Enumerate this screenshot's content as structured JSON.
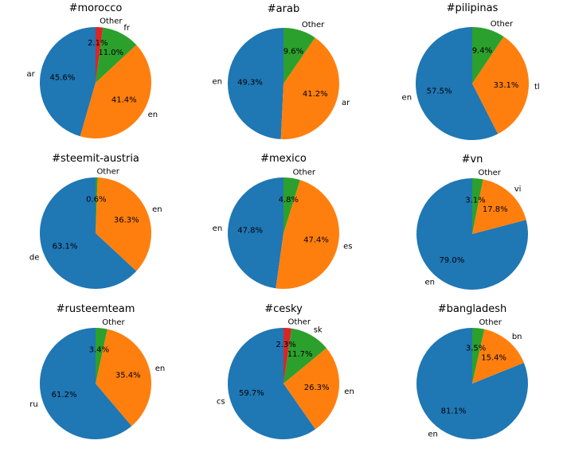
{
  "colors": [
    "#1f77b4",
    "#ff7f0e",
    "#2ca02c",
    "#d62728"
  ],
  "chart_data": [
    {
      "type": "pie",
      "title": "#morocco",
      "labels": [
        "ar",
        "en",
        "fr",
        "Other"
      ],
      "values": [
        45.6,
        41.4,
        11.0,
        2.1
      ]
    },
    {
      "type": "pie",
      "title": "#arab",
      "labels": [
        "en",
        "ar",
        "Other"
      ],
      "values": [
        49.3,
        41.2,
        9.6
      ]
    },
    {
      "type": "pie",
      "title": "#pilipinas",
      "labels": [
        "en",
        "tl",
        "Other"
      ],
      "values": [
        57.5,
        33.1,
        9.4
      ]
    },
    {
      "type": "pie",
      "title": "#steemit-austria",
      "labels": [
        "de",
        "en",
        "Other"
      ],
      "values": [
        63.1,
        36.3,
        0.6
      ]
    },
    {
      "type": "pie",
      "title": "#mexico",
      "labels": [
        "en",
        "es",
        "Other"
      ],
      "values": [
        47.8,
        47.4,
        4.8
      ]
    },
    {
      "type": "pie",
      "title": "#vn",
      "labels": [
        "en",
        "vi",
        "Other"
      ],
      "values": [
        79.0,
        17.8,
        3.1
      ]
    },
    {
      "type": "pie",
      "title": "#rusteemteam",
      "labels": [
        "ru",
        "en",
        "Other"
      ],
      "values": [
        61.2,
        35.4,
        3.4
      ]
    },
    {
      "type": "pie",
      "title": "#cesky",
      "labels": [
        "cs",
        "en",
        "sk",
        "Other"
      ],
      "values": [
        59.7,
        26.3,
        11.7,
        2.3
      ]
    },
    {
      "type": "pie",
      "title": "#bangladesh",
      "labels": [
        "en",
        "bn",
        "Other"
      ],
      "values": [
        81.1,
        15.4,
        3.5
      ]
    }
  ]
}
